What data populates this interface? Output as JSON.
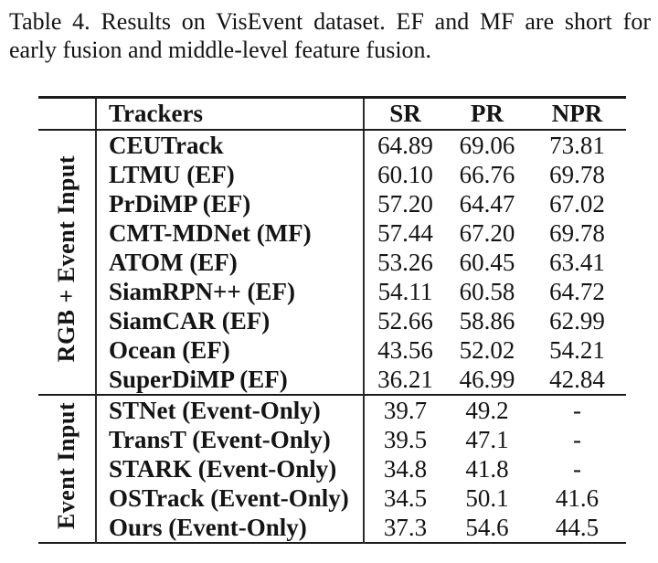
{
  "caption": {
    "line1": "Table 4. Results on VisEvent dataset. EF and MF are short for",
    "line2": "early fusion and middle-level feature fusion."
  },
  "table": {
    "columns": [
      "Trackers",
      "SR",
      "PR",
      "NPR"
    ],
    "groups": [
      {
        "label": "RGB + Event Input",
        "rows": [
          {
            "tracker": "CEUTrack",
            "sr": "64.89",
            "pr": "69.06",
            "npr": "73.81"
          },
          {
            "tracker": "LTMU (EF)",
            "sr": "60.10",
            "pr": "66.76",
            "npr": "69.78"
          },
          {
            "tracker": "PrDiMP (EF)",
            "sr": "57.20",
            "pr": "64.47",
            "npr": "67.02"
          },
          {
            "tracker": "CMT-MDNet (MF)",
            "sr": "57.44",
            "pr": "67.20",
            "npr": "69.78"
          },
          {
            "tracker": "ATOM (EF)",
            "sr": "53.26",
            "pr": "60.45",
            "npr": "63.41"
          },
          {
            "tracker": "SiamRPN++ (EF)",
            "sr": "54.11",
            "pr": "60.58",
            "npr": "64.72"
          },
          {
            "tracker": "SiamCAR (EF)",
            "sr": "52.66",
            "pr": "58.86",
            "npr": "62.99"
          },
          {
            "tracker": "Ocean (EF)",
            "sr": "43.56",
            "pr": "52.02",
            "npr": "54.21"
          },
          {
            "tracker": "SuperDiMP (EF)",
            "sr": "36.21",
            "pr": "46.99",
            "npr": "42.84"
          }
        ]
      },
      {
        "label": "Event Input",
        "rows": [
          {
            "tracker": "STNet (Event-Only)",
            "sr": "39.7",
            "pr": "49.2",
            "npr": "-"
          },
          {
            "tracker": "TransT (Event-Only)",
            "sr": "39.5",
            "pr": "47.1",
            "npr": "-"
          },
          {
            "tracker": "STARK (Event-Only)",
            "sr": "34.8",
            "pr": "41.8",
            "npr": "-"
          },
          {
            "tracker": "OSTrack (Event-Only)",
            "sr": "34.5",
            "pr": "50.1",
            "npr": "41.6"
          },
          {
            "tracker": "Ours (Event-Only)",
            "sr": "37.3",
            "pr": "54.6",
            "npr": "44.5"
          }
        ]
      }
    ]
  }
}
